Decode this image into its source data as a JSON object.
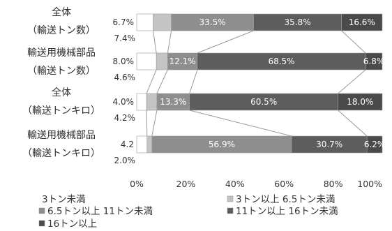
{
  "chart_data": {
    "type": "bar",
    "stacked": "percent",
    "orientation": "horizontal",
    "categories": [
      [
        "全体",
        "（輸送トン数）"
      ],
      [
        "輸送用機械部品",
        "（輸送トン数）"
      ],
      [
        "全体",
        "（輸送トンキロ）"
      ],
      [
        "輸送用機械部品",
        "（輸送トンキロ）"
      ]
    ],
    "series": [
      {
        "name": "3トン未満",
        "color": "#ffffff",
        "values": [
          6.7,
          8.0,
          4.0,
          4.2
        ]
      },
      {
        "name": "3トン以上 6.5トン未満",
        "color": "#c4c4c4",
        "values": [
          7.4,
          4.6,
          4.2,
          2.0
        ]
      },
      {
        "name": "6.5トン以上 11トン未満",
        "color": "#8e8e8e",
        "values": [
          33.5,
          12.1,
          13.3,
          56.9
        ]
      },
      {
        "name": "11トン以上 16トン未満",
        "color": "#5d5d5d",
        "values": [
          35.8,
          68.5,
          60.5,
          30.7
        ]
      },
      {
        "name": "16トン以上",
        "color": "#4a4a4a",
        "values": [
          16.6,
          6.8,
          18.0,
          6.2
        ]
      }
    ],
    "labels": [
      [
        {
          "series": 0,
          "text": "6.7%",
          "pos": "left"
        },
        {
          "series": 1,
          "text": "7.4%",
          "pos": "below"
        },
        {
          "series": 2,
          "text": "33.5%",
          "pos": "inside"
        },
        {
          "series": 3,
          "text": "35.8%",
          "pos": "inside"
        },
        {
          "series": 4,
          "text": "16.6%",
          "pos": "inside"
        }
      ],
      [
        {
          "series": 0,
          "text": "8.0%",
          "pos": "left"
        },
        {
          "series": 1,
          "text": "4.6%",
          "pos": "below"
        },
        {
          "series": 2,
          "text": "12.1%",
          "pos": "inside"
        },
        {
          "series": 3,
          "text": "68.5%",
          "pos": "inside"
        },
        {
          "series": 4,
          "text": "6.8%",
          "pos": "inside"
        }
      ],
      [
        {
          "series": 0,
          "text": "4.0%",
          "pos": "left"
        },
        {
          "series": 1,
          "text": "4.2%",
          "pos": "below"
        },
        {
          "series": 2,
          "text": "13.3%",
          "pos": "inside"
        },
        {
          "series": 3,
          "text": "60.5%",
          "pos": "inside"
        },
        {
          "series": 4,
          "text": "18.0%",
          "pos": "inside"
        }
      ],
      [
        {
          "series": 0,
          "text": "4.2",
          "pos": "left"
        },
        {
          "series": 1,
          "text": "2.0%",
          "pos": "below"
        },
        {
          "series": 2,
          "text": "56.9%",
          "pos": "inside"
        },
        {
          "series": 3,
          "text": "30.7%",
          "pos": "inside"
        },
        {
          "series": 4,
          "text": "6.2%",
          "pos": "inside"
        }
      ]
    ],
    "x_ticks": [
      "0%",
      "20%",
      "40%",
      "60%",
      "80%",
      "100%"
    ],
    "xlim": [
      0,
      100
    ],
    "grid": false,
    "connector_lines": true,
    "legend": [
      {
        "series": 0,
        "text": "3トン未満",
        "marker": ""
      },
      {
        "series": 1,
        "text": "3トン以上 6.5トン未満",
        "marker": "■"
      },
      {
        "series": 2,
        "text": "6.5トン以上 11トン未満",
        "marker": "■"
      },
      {
        "series": 3,
        "text": "11トン以上 16トン未満",
        "marker": "■"
      },
      {
        "series": 4,
        "text": "16トン以上",
        "marker": "■"
      }
    ],
    "legend_position": "bottom"
  }
}
